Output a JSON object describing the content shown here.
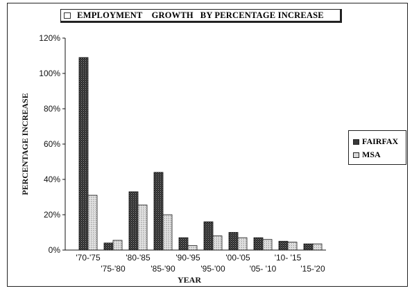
{
  "chart_data": {
    "type": "bar",
    "title": "EMPLOYMENT    GROWTH   BY PERCENTAGE INCREASE",
    "xlabel": "YEAR",
    "ylabel": "PERCENTAGE INCREASE",
    "categories": [
      "'70-'75",
      "'75-'80",
      "'80-'85",
      "'85-'90",
      "'90-'95",
      "'95-'00",
      "'00-'05",
      "'05- '10",
      "'10- '15",
      "'15-'20"
    ],
    "series": [
      {
        "name": "FAIRFAX",
        "values": [
          109,
          4,
          33,
          44,
          7,
          16,
          10,
          7,
          5,
          3.5
        ]
      },
      {
        "name": "MSA",
        "values": [
          31,
          5.5,
          25.5,
          20,
          2.5,
          8,
          7,
          6,
          4.5,
          3.5
        ]
      }
    ],
    "ylim": [
      0,
      120
    ],
    "yticks": [
      "0%",
      "20%",
      "40%",
      "60%",
      "80%",
      "100%",
      "120%"
    ],
    "grid": false,
    "legend_position": "right",
    "colors": {
      "FAIRFAX": "#3a3a3a",
      "MSA": "#cfcfcf"
    }
  }
}
